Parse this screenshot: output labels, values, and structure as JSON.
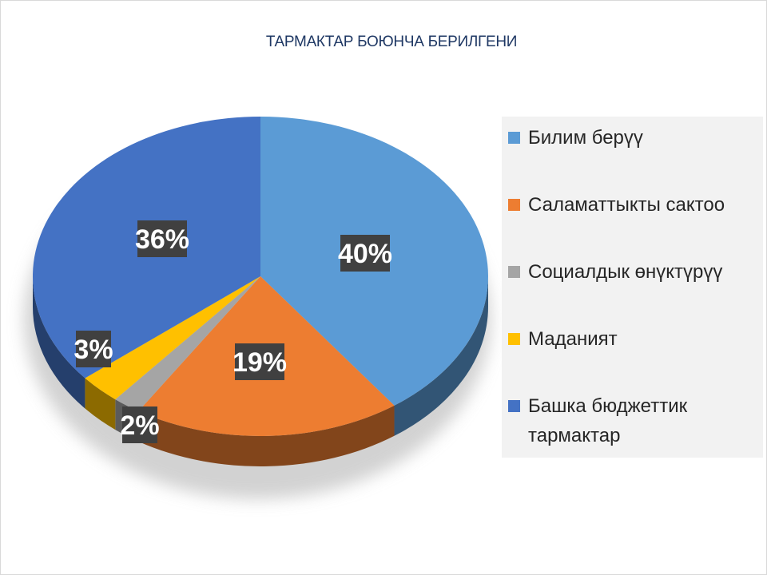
{
  "chart_data": {
    "type": "pie",
    "title": "ТАРМАКТАР БОЮНЧА БЕРИЛГЕНИ",
    "slices": [
      {
        "label": "Билим берүү",
        "value": 40,
        "display": "40%",
        "color": "#5b9bd5"
      },
      {
        "label": "Саламаттыкты сактоо",
        "value": 19,
        "display": "19%",
        "color": "#ed7d31"
      },
      {
        "label": "Социалдык өнүктүрүү",
        "value": 2,
        "display": "2%",
        "color": "#a5a5a5"
      },
      {
        "label": "Маданият",
        "value": 3,
        "display": "3%",
        "color": "#ffc000"
      },
      {
        "label": "Башка бюджеттик тармактар",
        "value": 36,
        "display": "36%",
        "color": "#4472c4"
      }
    ],
    "legend_position": "right",
    "style": "3d"
  }
}
